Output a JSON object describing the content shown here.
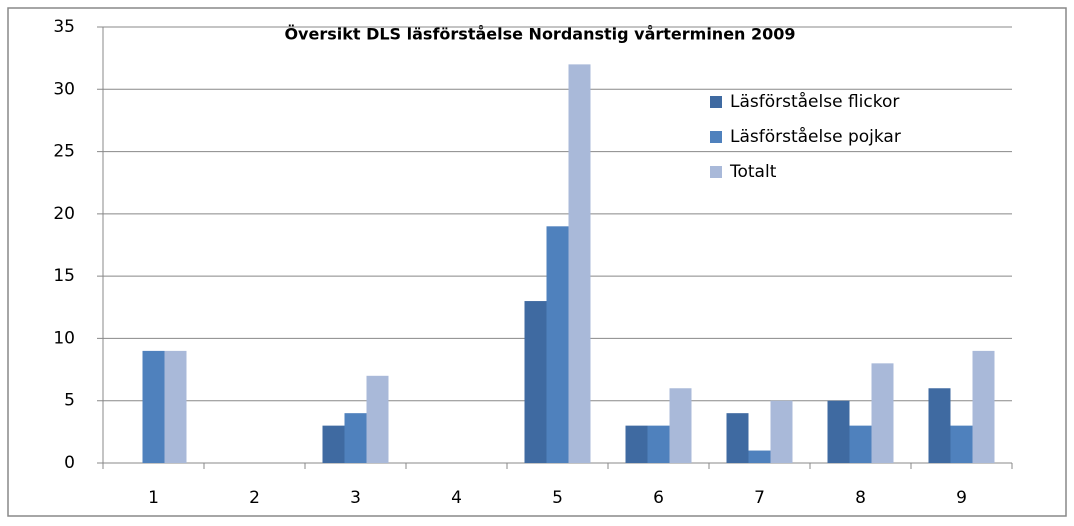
{
  "chart_data": {
    "type": "bar",
    "title": "Översikt DLS läsförståelse Nordanstig vårterminen 2009",
    "categories": [
      "1",
      "2",
      "3",
      "4",
      "5",
      "6",
      "7",
      "8",
      "9"
    ],
    "series": [
      {
        "name": "Läsförståelse flickor",
        "color": "#3f6aa1",
        "values": [
          0,
          0,
          3,
          0,
          13,
          3,
          4,
          5,
          6
        ]
      },
      {
        "name": "Läsförståelse pojkar",
        "color": "#4f81bd",
        "values": [
          9,
          0,
          4,
          0,
          19,
          3,
          1,
          3,
          3
        ]
      },
      {
        "name": "Totalt",
        "color": "#a9b9d9",
        "values": [
          9,
          0,
          7,
          0,
          32,
          6,
          5,
          8,
          9
        ]
      }
    ],
    "ylim": [
      0,
      35
    ],
    "yticks": [
      0,
      5,
      10,
      15,
      20,
      25,
      30,
      35
    ],
    "grid": true,
    "legend": "upper right"
  }
}
